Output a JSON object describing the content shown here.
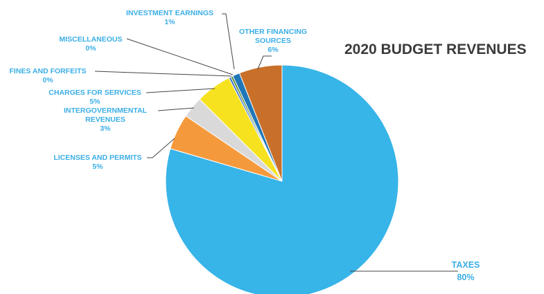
{
  "chart_data": {
    "type": "pie",
    "title": "2020 BUDGET REVENUES",
    "slices": [
      {
        "name": "TAXES",
        "value": 80,
        "label": "80%",
        "color": "#37b4e8"
      },
      {
        "name": "LICENSES AND PERMITS",
        "value": 5,
        "label": "5%",
        "color": "#f59a3c"
      },
      {
        "name": "INTERGOVERNMENTAL REVENUES",
        "value": 3,
        "label": "3%",
        "color": "#d9d9d9"
      },
      {
        "name": "CHARGES FOR SERVICES",
        "value": 5,
        "label": "5%",
        "color": "#f6e21e"
      },
      {
        "name": "FINES AND FORFEITS",
        "value": 0.3,
        "label": "0%",
        "color": "#3a6fc4"
      },
      {
        "name": "MISCELLANEOUS",
        "value": 0.3,
        "label": "0%",
        "color": "#5b8f3a"
      },
      {
        "name": "INVESTMENT EARNINGS",
        "value": 1,
        "label": "1%",
        "color": "#1f76b8"
      },
      {
        "name": "OTHER FINANCING SOURCES",
        "value": 6,
        "label": "6%",
        "color": "#c8702a"
      }
    ],
    "label_color": "#3aaee6"
  }
}
